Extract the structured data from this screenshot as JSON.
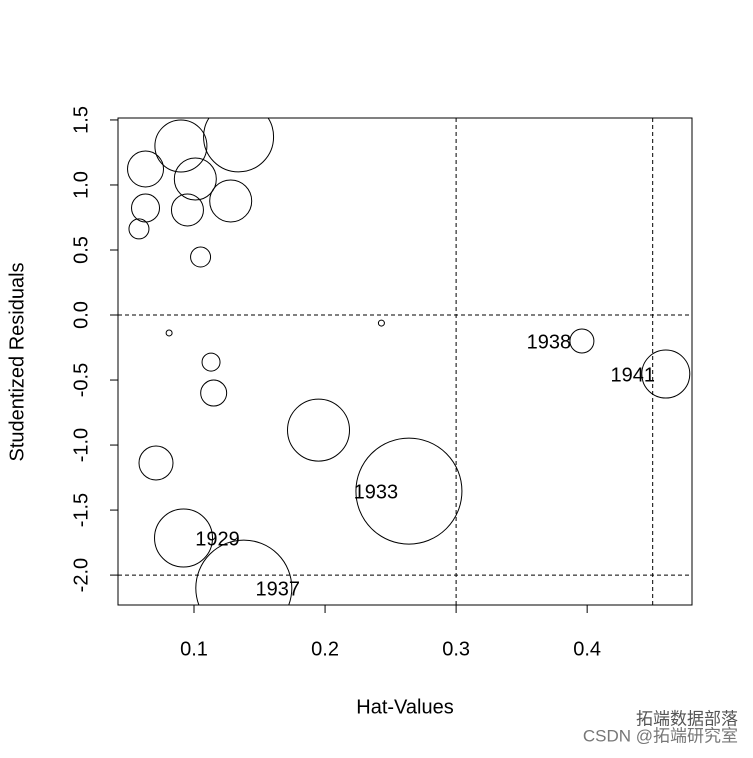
{
  "chart_data": {
    "type": "bubble",
    "x_label": "Hat-Values",
    "y_label": "Studentized Residuals",
    "xlim": [
      0.042,
      0.48
    ],
    "ylim": [
      -2.23,
      1.515
    ],
    "xticks": [
      0.1,
      0.2,
      0.3,
      0.4
    ],
    "yticks": [
      {
        "value": -2,
        "label": "-2.0"
      },
      -1.5,
      {
        "value": -1,
        "label": "-1.0"
      },
      -0.5,
      {
        "value": 0,
        "label": "0.0"
      },
      0.5,
      {
        "value": 1,
        "label": "1.0"
      },
      1.5
    ],
    "hlines": [
      0,
      -2
    ],
    "vlines": [
      0.3,
      0.45
    ],
    "series": [
      {
        "color": "#000000",
        "x": [
          0.063,
          0.09,
          0.134,
          0.101,
          0.063,
          0.095,
          0.128,
          0.058,
          0.105,
          0.081,
          0.243,
          0.113,
          0.115,
          0.071,
          0.195,
          0.264,
          0.092,
          0.138,
          0.396,
          0.46
        ],
        "values": [
          1.123,
          1.3,
          1.37,
          1.046,
          0.823,
          0.808,
          0.877,
          0.662,
          0.446,
          -0.138,
          -0.062,
          -0.362,
          -0.6,
          -1.138,
          -0.885,
          -1.354,
          -1.715,
          -2.1,
          -0.2,
          -0.454
        ],
        "sizes": [
          0.18,
          0.26,
          0.35,
          0.21,
          0.14,
          0.16,
          0.21,
          0.1,
          0.1,
          0.03,
          0.03,
          0.09,
          0.13,
          0.17,
          0.31,
          0.53,
          0.29,
          0.48,
          0.12,
          0.24
        ],
        "point_labels": [
          null,
          null,
          null,
          null,
          null,
          null,
          null,
          null,
          null,
          null,
          null,
          null,
          null,
          null,
          null,
          "1933",
          "1929",
          "1937",
          "1938",
          "1941"
        ]
      }
    ],
    "watermark": [
      "拓端数据部落",
      "CSDN @拓端研究室"
    ]
  }
}
